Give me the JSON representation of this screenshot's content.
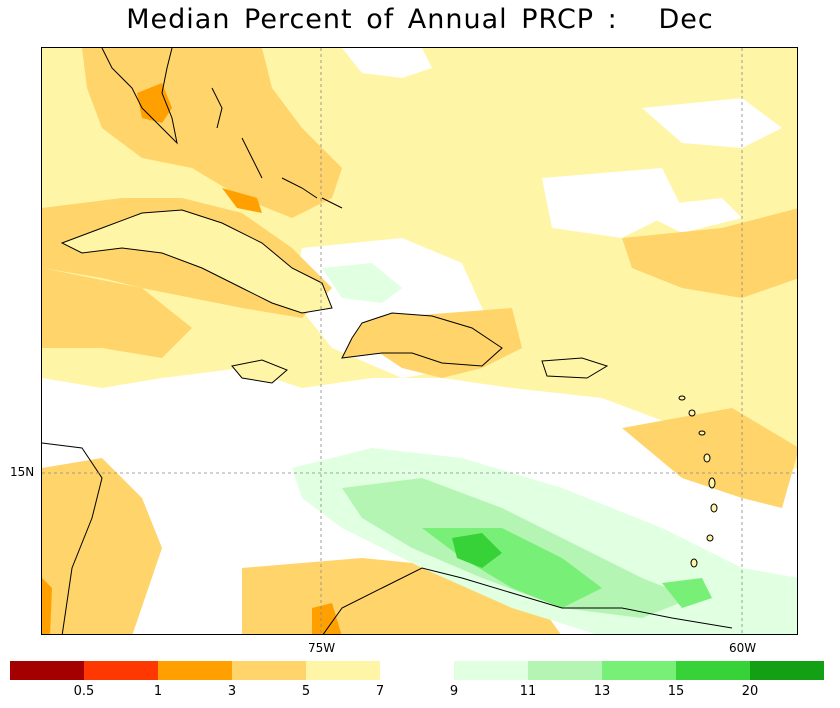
{
  "title": "Median Percent of Annual PRCP :   Dec",
  "axes": {
    "lon_labels": [
      "75W",
      "60W"
    ],
    "lat_labels": [
      "15N"
    ]
  },
  "colorbar": {
    "colors": [
      "#a50000",
      "#ff3700",
      "#ffa000",
      "#ffd46a",
      "#fff5a6",
      "#ffffff",
      "#e1ffe1",
      "#b4f5b4",
      "#78f078",
      "#37d237",
      "#14a014"
    ],
    "labels": [
      "0.5",
      "1",
      "3",
      "5",
      "7",
      "9",
      "11",
      "13",
      "15",
      "20"
    ]
  },
  "colors": {
    "pale_yellow": "#fff5a6",
    "light_orange": "#ffd46a",
    "orange": "#ffa000",
    "pale_green": "#e1ffe1",
    "light_green": "#b4f5b4",
    "green": "#78f078",
    "dark_green": "#37d237",
    "coast": "#000000",
    "borders": "#a0a0a0"
  }
}
